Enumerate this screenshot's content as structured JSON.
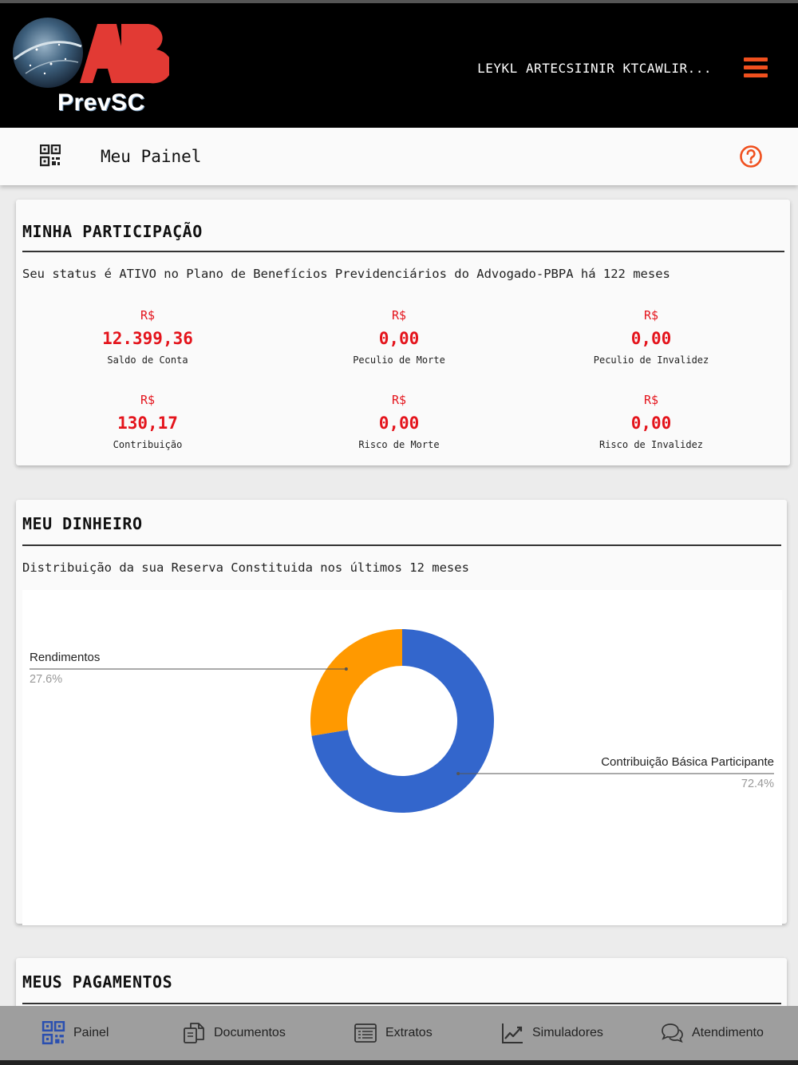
{
  "header": {
    "logo_text": "PrevSC",
    "logo_letters": "AB",
    "user_name": "LEYKL ARTECSIINIR KTCAWLIR...",
    "menu_icon": "hamburger-icon"
  },
  "subheader": {
    "icon": "qr-code-icon",
    "title": "Meu Painel",
    "help_icon": "help-circle-icon"
  },
  "participation": {
    "title": "MINHA PARTICIPAÇÃO",
    "status_text": "Seu status é ATIVO no Plano de Benefícios Previdenciários do Advogado-PBPA há 122 meses",
    "stats": [
      {
        "currency": "R$",
        "value": "12.399,36",
        "label": "Saldo de Conta"
      },
      {
        "currency": "R$",
        "value": "0,00",
        "label": "Peculio de Morte"
      },
      {
        "currency": "R$",
        "value": "0,00",
        "label": "Peculio de Invalidez"
      },
      {
        "currency": "R$",
        "value": "130,17",
        "label": "Contribuição"
      },
      {
        "currency": "R$",
        "value": "0,00",
        "label": "Risco de Morte"
      },
      {
        "currency": "R$",
        "value": "0,00",
        "label": "Risco de Invalidez"
      }
    ]
  },
  "money": {
    "title": "MEU DINHEIRO",
    "description": "Distribuição da sua Reserva Constituida nos últimos 12 meses"
  },
  "chart_data": {
    "type": "pie",
    "donut": true,
    "slices": [
      {
        "label": "Contribuição Básica Participante",
        "percent_label": "72.4%",
        "value": 72.4,
        "color": "#3366cc"
      },
      {
        "label": "Rendimentos",
        "percent_label": "27.6%",
        "value": 27.6,
        "color": "#ff9900"
      }
    ]
  },
  "payments": {
    "title": "MEUS PAGAMENTOS"
  },
  "nav": {
    "items": [
      {
        "label": "Painel",
        "icon": "qr-code-icon",
        "active": true
      },
      {
        "label": "Documentos",
        "icon": "documents-icon"
      },
      {
        "label": "Extratos",
        "icon": "list-icon"
      },
      {
        "label": "Simuladores",
        "icon": "chart-line-icon"
      },
      {
        "label": "Atendimento",
        "icon": "chat-icon"
      }
    ]
  },
  "colors": {
    "accent": "#f0501e",
    "value_red": "#e4141c",
    "nav_active": "#2a4fb0"
  }
}
